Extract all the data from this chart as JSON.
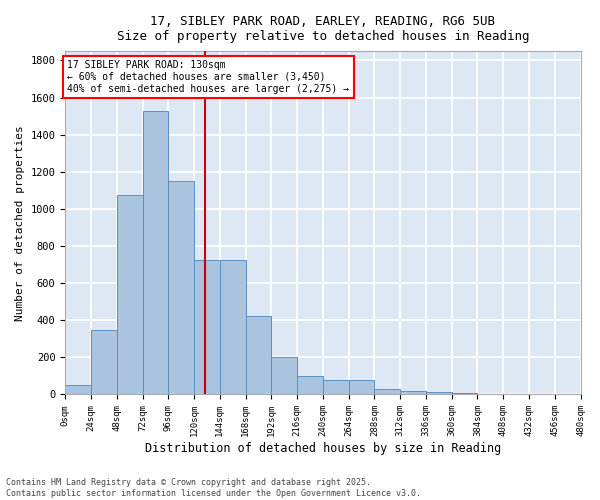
{
  "title_line1": "17, SIBLEY PARK ROAD, EARLEY, READING, RG6 5UB",
  "title_line2": "Size of property relative to detached houses in Reading",
  "xlabel": "Distribution of detached houses by size in Reading",
  "ylabel": "Number of detached properties",
  "annotation_line1": "17 SIBLEY PARK ROAD: 130sqm",
  "annotation_line2": "← 60% of detached houses are smaller (3,450)",
  "annotation_line3": "40% of semi-detached houses are larger (2,275) →",
  "property_size_sqm": 130,
  "bin_width": 24,
  "num_bins": 20,
  "bar_values": [
    50,
    350,
    1075,
    1525,
    1150,
    725,
    725,
    425,
    200,
    100,
    80,
    80,
    30,
    20,
    15,
    10,
    5,
    5,
    2,
    2
  ],
  "bar_color": "#aac4e0",
  "bar_edge_color": "#5a8fc0",
  "vline_color": "#cc0000",
  "vline_x": 130,
  "ylim": [
    0,
    1850
  ],
  "yticks": [
    0,
    200,
    400,
    600,
    800,
    1000,
    1200,
    1400,
    1600,
    1800
  ],
  "bg_color": "#dde8f4",
  "grid_color": "#ffffff",
  "footer_line1": "Contains HM Land Registry data © Crown copyright and database right 2025.",
  "footer_line2": "Contains public sector information licensed under the Open Government Licence v3.0."
}
